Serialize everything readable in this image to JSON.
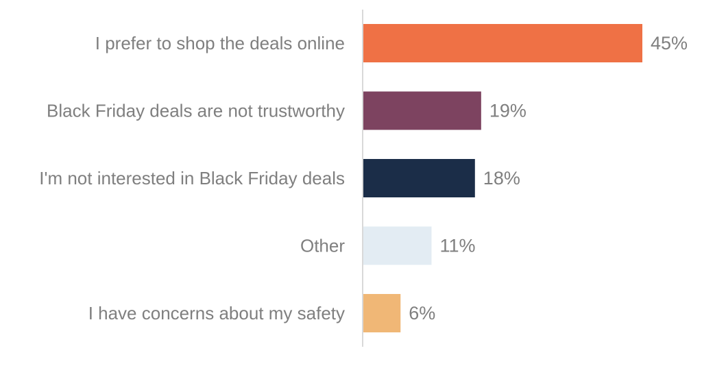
{
  "chart_data": {
    "type": "bar",
    "orientation": "horizontal",
    "categories": [
      "I prefer to shop the deals online",
      "Black Friday deals are not trustworthy",
      "I'm not interested in Black Friday deals",
      "Other",
      "I have concerns about my safety"
    ],
    "values": [
      45,
      19,
      18,
      11,
      6
    ],
    "value_labels": [
      "45%",
      "19%",
      "18%",
      "11%",
      "6%"
    ],
    "colors": [
      "#ef7145",
      "#7d4360",
      "#1b2d48",
      "#e3ecf3",
      "#f0b776"
    ],
    "title": "",
    "xlabel": "",
    "ylabel": "",
    "xlim": [
      0,
      45
    ],
    "grid": false,
    "legend": "none"
  }
}
